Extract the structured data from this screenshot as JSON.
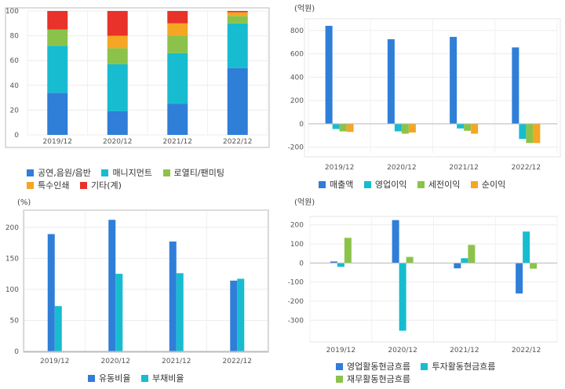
{
  "colors": {
    "blue": "#2f7ed8",
    "cyan": "#17bcd0",
    "green": "#8bc34a",
    "orange": "#f5a623",
    "red": "#e8322a"
  },
  "chart_data": [
    {
      "id": "revenue-mix",
      "type": "bar",
      "stacked": true,
      "unit": "",
      "categories": [
        "2019/12",
        "2020/12",
        "2021/12",
        "2022/12"
      ],
      "ylim": [
        0,
        100
      ],
      "yticks": [
        0,
        20,
        40,
        60,
        80,
        100
      ],
      "grid": true,
      "legend": "bottom",
      "series": [
        {
          "name": "공연,음원/음반",
          "color": "#2f7ed8",
          "values": [
            34,
            19,
            25,
            54
          ]
        },
        {
          "name": "매니지먼트",
          "color": "#17bcd0",
          "values": [
            38,
            38,
            41,
            36
          ]
        },
        {
          "name": "로열티/팬미팅",
          "color": "#8bc34a",
          "values": [
            13,
            13,
            14,
            6
          ]
        },
        {
          "name": "특수인쇄",
          "color": "#f5a623",
          "values": [
            0,
            10,
            10,
            3
          ]
        },
        {
          "name": "기타(계)",
          "color": "#e8322a",
          "values": [
            15,
            20,
            10,
            1
          ]
        }
      ]
    },
    {
      "id": "profit",
      "type": "bar",
      "unit": "(억원)",
      "categories": [
        "2019/12",
        "2020/12",
        "2021/12",
        "2022/12"
      ],
      "ylim": [
        -250,
        900
      ],
      "yticks": [
        -200,
        0,
        200,
        400,
        600,
        800
      ],
      "grid": true,
      "legend": "bottom",
      "series": [
        {
          "name": "매출액",
          "color": "#2f7ed8",
          "values": [
            840,
            725,
            745,
            655
          ]
        },
        {
          "name": "영업이익",
          "color": "#17bcd0",
          "values": [
            -45,
            -65,
            -40,
            -130
          ]
        },
        {
          "name": "세전이익",
          "color": "#8bc34a",
          "values": [
            -65,
            -85,
            -60,
            -165
          ]
        },
        {
          "name": "순이익",
          "color": "#f5a623",
          "values": [
            -70,
            -75,
            -85,
            -165
          ]
        }
      ]
    },
    {
      "id": "ratios",
      "type": "bar",
      "unit": "(%)",
      "categories": [
        "2019/12",
        "2020/12",
        "2021/12",
        "2022/12"
      ],
      "ylim": [
        0,
        225
      ],
      "yticks": [
        0,
        50,
        100,
        150,
        200
      ],
      "grid": true,
      "legend": "bottom",
      "series": [
        {
          "name": "유동비율",
          "color": "#2f7ed8",
          "values": [
            189,
            212,
            177,
            114
          ]
        },
        {
          "name": "부채비율",
          "color": "#17bcd0",
          "values": [
            73,
            125,
            126,
            117
          ]
        }
      ]
    },
    {
      "id": "cashflow",
      "type": "bar",
      "unit": "(억원)",
      "categories": [
        "2019/12",
        "2020/12",
        "2021/12",
        "2022/12"
      ],
      "ylim": [
        -410,
        240
      ],
      "yticks": [
        -300,
        -200,
        -100,
        0,
        100,
        200
      ],
      "grid": true,
      "legend": "bottom",
      "series": [
        {
          "name": "영업활동현금흐름",
          "color": "#2f7ed8",
          "values": [
            8,
            225,
            -28,
            -160
          ]
        },
        {
          "name": "투자활동현금흐름",
          "color": "#17bcd0",
          "values": [
            -20,
            -355,
            25,
            165
          ]
        },
        {
          "name": "재무활동현금흐름",
          "color": "#8bc34a",
          "values": [
            132,
            32,
            95,
            -30
          ]
        }
      ]
    }
  ]
}
